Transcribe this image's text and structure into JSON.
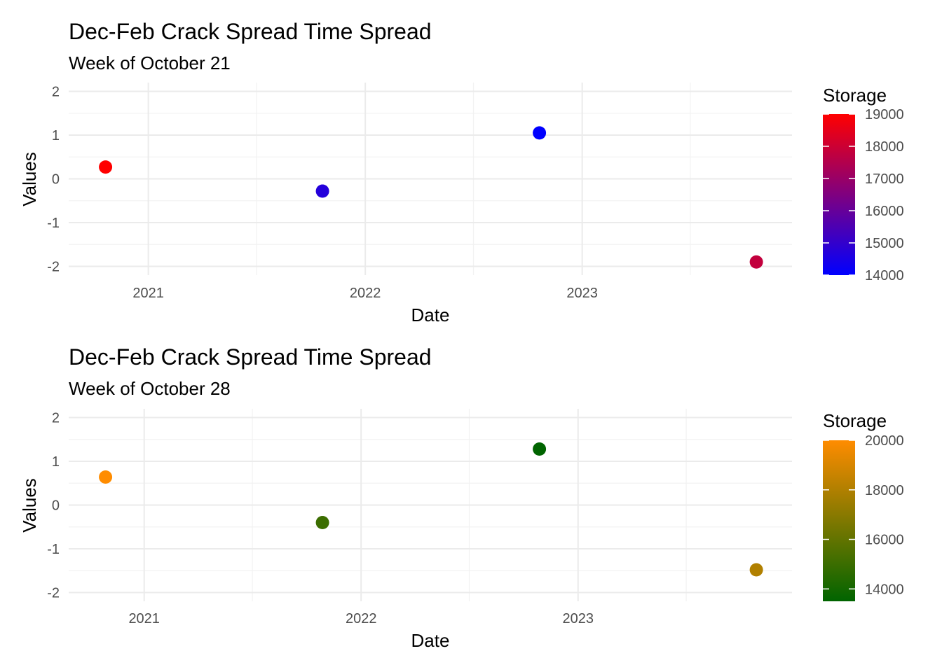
{
  "chart_data": [
    {
      "type": "scatter",
      "title": "Dec-Feb Crack Spread Time Spread",
      "subtitle": "Week of October 21",
      "xlabel": "Date",
      "ylabel": "Values",
      "x_ticks": [
        "2021",
        "2022",
        "2023"
      ],
      "x_range": [
        "2020-08-20",
        "2023-12-20"
      ],
      "y_ticks": [
        2,
        1,
        0,
        -1,
        -2
      ],
      "ylim": [
        -2.2,
        2.2
      ],
      "grid": true,
      "points": [
        {
          "x": "2020-10-21",
          "y": 0.27,
          "storage": 19000
        },
        {
          "x": "2021-10-21",
          "y": -0.28,
          "storage": 14700
        },
        {
          "x": "2022-10-21",
          "y": 1.05,
          "storage": 14000
        },
        {
          "x": "2023-10-21",
          "y": -1.9,
          "storage": 17800
        }
      ],
      "legend": {
        "title": "Storage",
        "placement": "right",
        "ticks": [
          19000,
          18000,
          17000,
          16000,
          15000,
          14000
        ],
        "range": [
          14000,
          19000
        ],
        "low_color": "#0000ff",
        "high_color": "#ff0000"
      }
    },
    {
      "type": "scatter",
      "title": "Dec-Feb Crack Spread Time Spread",
      "subtitle": "Week of October 28",
      "xlabel": "Date",
      "ylabel": "Values",
      "x_ticks": [
        "2021",
        "2022",
        "2023"
      ],
      "x_range": [
        "2020-08-27",
        "2023-12-27"
      ],
      "y_ticks": [
        2,
        1,
        0,
        -1,
        -2
      ],
      "ylim": [
        -2.2,
        2.2
      ],
      "grid": true,
      "points": [
        {
          "x": "2020-10-28",
          "y": 0.64,
          "storage": 20000
        },
        {
          "x": "2021-10-28",
          "y": -0.4,
          "storage": 15000
        },
        {
          "x": "2022-10-28",
          "y": 1.28,
          "storage": 13500
        },
        {
          "x": "2023-10-28",
          "y": -1.48,
          "storage": 18000
        }
      ],
      "legend": {
        "title": "Storage",
        "placement": "right",
        "ticks": [
          20000,
          18000,
          16000,
          14000
        ],
        "range": [
          13500,
          20000
        ],
        "low_color": "#006400",
        "high_color": "#ff8c00"
      }
    }
  ]
}
